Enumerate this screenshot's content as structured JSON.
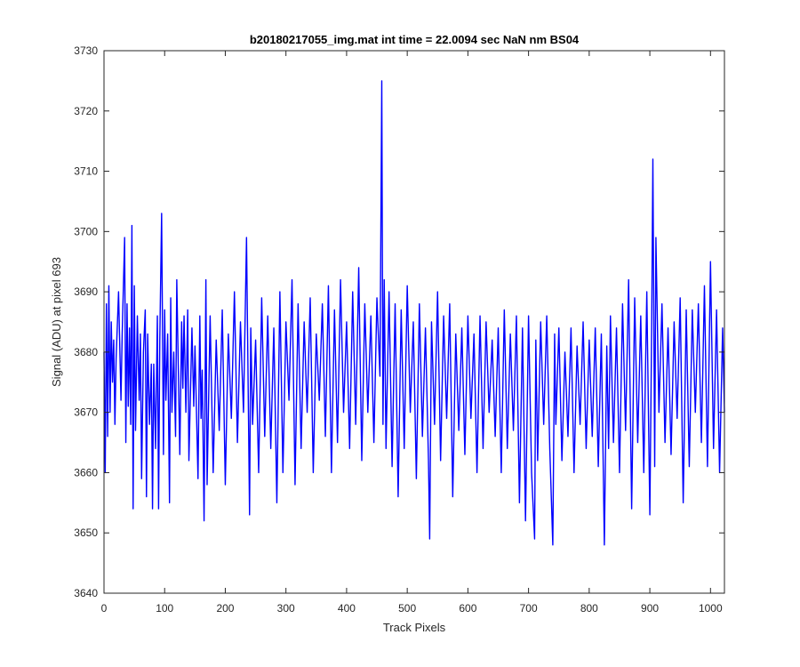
{
  "chart_data": {
    "type": "line",
    "title": "b20180217055_img.mat int time = 22.0094 sec  NaN nm BS04",
    "xlabel": "Track Pixels",
    "ylabel": "Signal (ADU) at pixel 693",
    "xlim": [
      0,
      1023
    ],
    "ylim": [
      3640,
      3730
    ],
    "xticks": [
      0,
      100,
      200,
      300,
      400,
      500,
      600,
      700,
      800,
      900,
      1000
    ],
    "yticks": [
      3640,
      3650,
      3660,
      3670,
      3680,
      3690,
      3700,
      3710,
      3720,
      3730
    ],
    "line_color": "#0000ff",
    "grid": false,
    "series": [
      {
        "x": [
          0,
          2,
          4,
          6,
          8,
          10,
          12,
          14,
          16,
          18,
          20,
          24,
          28,
          30,
          34,
          36,
          38,
          40,
          42,
          44,
          46,
          48,
          50,
          52,
          55,
          58,
          60,
          62,
          65,
          68,
          70,
          72,
          75,
          78,
          80,
          82,
          85,
          88,
          90,
          92,
          95,
          98,
          100,
          102,
          105,
          108,
          110,
          112,
          115,
          118,
          120,
          125,
          128,
          130,
          132,
          135,
          138,
          140,
          145,
          148,
          150,
          155,
          158,
          160,
          162,
          165,
          168,
          170,
          175,
          180,
          185,
          190,
          195,
          200,
          205,
          210,
          215,
          220,
          225,
          230,
          235,
          240,
          242,
          245,
          250,
          255,
          260,
          265,
          270,
          275,
          280,
          285,
          290,
          295,
          300,
          305,
          310,
          315,
          320,
          325,
          330,
          335,
          340,
          345,
          350,
          355,
          360,
          365,
          370,
          375,
          380,
          385,
          390,
          395,
          400,
          405,
          410,
          415,
          420,
          425,
          430,
          435,
          440,
          445,
          450,
          455,
          458,
          460,
          462,
          465,
          470,
          475,
          480,
          485,
          490,
          495,
          500,
          505,
          510,
          515,
          520,
          525,
          530,
          535,
          537,
          540,
          545,
          550,
          555,
          560,
          565,
          570,
          575,
          580,
          585,
          590,
          595,
          600,
          605,
          610,
          615,
          620,
          625,
          630,
          635,
          640,
          645,
          650,
          655,
          660,
          665,
          670,
          675,
          680,
          685,
          690,
          695,
          700,
          705,
          710,
          712,
          715,
          720,
          725,
          730,
          735,
          740,
          743,
          745,
          750,
          755,
          760,
          765,
          770,
          775,
          780,
          785,
          790,
          795,
          800,
          805,
          810,
          815,
          820,
          825,
          829,
          832,
          835,
          840,
          845,
          850,
          855,
          860,
          865,
          870,
          875,
          880,
          885,
          890,
          895,
          900,
          903,
          905,
          908,
          910,
          915,
          920,
          925,
          930,
          935,
          940,
          945,
          950,
          955,
          960,
          965,
          970,
          975,
          980,
          985,
          990,
          995,
          1000,
          1005,
          1010,
          1015,
          1020,
          1023
        ],
        "values": [
          3680,
          3660,
          3688,
          3666,
          3691,
          3670,
          3685,
          3675,
          3682,
          3668,
          3679,
          3690,
          3672,
          3683,
          3699,
          3665,
          3688,
          3671,
          3684,
          3668,
          3701,
          3654,
          3691,
          3667,
          3686,
          3672,
          3683,
          3659,
          3680,
          3687,
          3656,
          3683,
          3668,
          3678,
          3654,
          3678,
          3664,
          3686,
          3654,
          3682,
          3703,
          3663,
          3687,
          3672,
          3683,
          3655,
          3689,
          3670,
          3680,
          3666,
          3692,
          3663,
          3685,
          3674,
          3686,
          3670,
          3687,
          3662,
          3684,
          3671,
          3681,
          3659,
          3686,
          3669,
          3677,
          3652,
          3692,
          3658,
          3686,
          3660,
          3682,
          3667,
          3687,
          3658,
          3683,
          3669,
          3690,
          3665,
          3685,
          3670,
          3699,
          3653,
          3684,
          3668,
          3682,
          3660,
          3689,
          3666,
          3686,
          3664,
          3684,
          3655,
          3690,
          3660,
          3685,
          3672,
          3692,
          3658,
          3688,
          3664,
          3685,
          3670,
          3689,
          3660,
          3683,
          3672,
          3688,
          3666,
          3691,
          3660,
          3687,
          3665,
          3692,
          3670,
          3685,
          3664,
          3690,
          3668,
          3694,
          3662,
          3688,
          3670,
          3686,
          3665,
          3689,
          3676,
          3725,
          3668,
          3692,
          3664,
          3690,
          3661,
          3688,
          3656,
          3687,
          3664,
          3691,
          3670,
          3685,
          3659,
          3688,
          3666,
          3684,
          3662,
          3649,
          3685,
          3668,
          3690,
          3662,
          3686,
          3669,
          3688,
          3656,
          3683,
          3667,
          3684,
          3663,
          3686,
          3669,
          3683,
          3660,
          3686,
          3664,
          3685,
          3670,
          3682,
          3666,
          3684,
          3660,
          3687,
          3664,
          3683,
          3667,
          3686,
          3655,
          3684,
          3652,
          3686,
          3660,
          3649,
          3682,
          3662,
          3685,
          3668,
          3686,
          3664,
          3648,
          3683,
          3668,
          3684,
          3662,
          3680,
          3666,
          3684,
          3660,
          3681,
          3668,
          3685,
          3664,
          3682,
          3666,
          3684,
          3661,
          3683,
          3648,
          3681,
          3664,
          3686,
          3665,
          3684,
          3660,
          3688,
          3667,
          3692,
          3654,
          3689,
          3665,
          3686,
          3660,
          3690,
          3653,
          3684,
          3712,
          3661,
          3699,
          3670,
          3688,
          3665,
          3684,
          3663,
          3685,
          3669,
          3689,
          3655,
          3687,
          3661,
          3687,
          3670,
          3688,
          3665,
          3691,
          3661,
          3695,
          3664,
          3687,
          3660,
          3684,
          3670
        ]
      }
    ]
  }
}
